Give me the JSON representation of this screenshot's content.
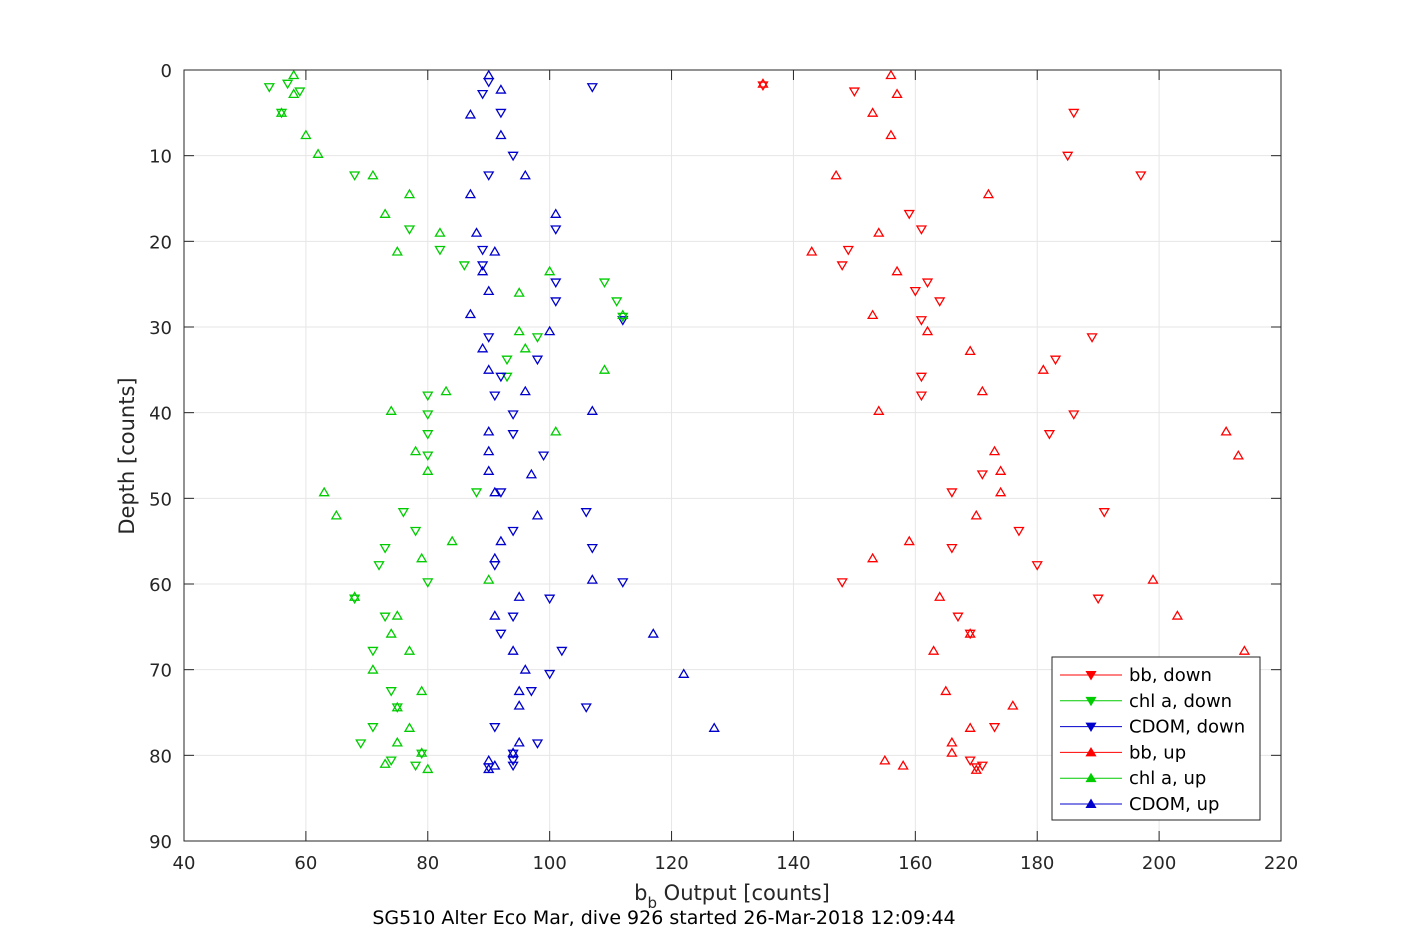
{
  "chart_data": {
    "type": "scatter",
    "title": "SG510 Alter Eco Mar, dive 926 started 26-Mar-2018 12:09:44",
    "xlabel_main": "b",
    "xlabel_sub": "b",
    "xlabel_rest": " Output [counts]",
    "ylabel": "Depth [counts]",
    "xlim": [
      40,
      220
    ],
    "ylim": [
      0,
      90
    ],
    "y_reversed": true,
    "grid": true,
    "legend_position": "bottom-right",
    "xticks": [
      "40",
      "60",
      "80",
      "100",
      "120",
      "140",
      "160",
      "180",
      "200",
      "220"
    ],
    "yticks": [
      "0",
      "10",
      "20",
      "30",
      "40",
      "50",
      "60",
      "70",
      "80",
      "90"
    ],
    "series": [
      {
        "name": "bb, down",
        "color": "#ff0000",
        "marker": "triangle-down",
        "points": [
          [
            135,
            1.8
          ],
          [
            150,
            2.5
          ],
          [
            186,
            5
          ],
          [
            185,
            10
          ],
          [
            197,
            12.3
          ],
          [
            159,
            16.8
          ],
          [
            161,
            18.6
          ],
          [
            149,
            21
          ],
          [
            148,
            22.8
          ],
          [
            162,
            24.8
          ],
          [
            160,
            25.8
          ],
          [
            164,
            27
          ],
          [
            161,
            29.2
          ],
          [
            189,
            31.2
          ],
          [
            183,
            33.8
          ],
          [
            161,
            35.8
          ],
          [
            161,
            38
          ],
          [
            186,
            40.2
          ],
          [
            182,
            42.5
          ],
          [
            171,
            47.2
          ],
          [
            166,
            49.3
          ],
          [
            191,
            51.6
          ],
          [
            177,
            53.8
          ],
          [
            166,
            55.8
          ],
          [
            180,
            57.8
          ],
          [
            148,
            59.8
          ],
          [
            190,
            61.7
          ],
          [
            167,
            63.8
          ],
          [
            169,
            65.8
          ],
          [
            173,
            76.7
          ],
          [
            169,
            80.6
          ],
          [
            171,
            81.2
          ],
          [
            170,
            81.4
          ]
        ]
      },
      {
        "name": "chl a, down",
        "color": "#00cc00",
        "marker": "triangle-down",
        "points": [
          [
            54,
            2
          ],
          [
            57,
            1.6
          ],
          [
            59,
            2.5
          ],
          [
            56,
            5
          ],
          [
            68,
            12.3
          ],
          [
            77,
            18.6
          ],
          [
            82,
            21
          ],
          [
            86,
            22.8
          ],
          [
            109,
            24.8
          ],
          [
            111,
            27
          ],
          [
            112,
            28.8
          ],
          [
            98,
            31.2
          ],
          [
            93,
            33.8
          ],
          [
            93,
            35.8
          ],
          [
            80,
            38
          ],
          [
            80,
            40.2
          ],
          [
            80,
            42.5
          ],
          [
            80,
            45
          ],
          [
            88,
            49.3
          ],
          [
            76,
            51.6
          ],
          [
            78,
            53.8
          ],
          [
            73,
            55.8
          ],
          [
            72,
            57.8
          ],
          [
            80,
            59.8
          ],
          [
            68,
            61.7
          ],
          [
            73,
            63.8
          ],
          [
            71,
            67.8
          ],
          [
            74,
            72.5
          ],
          [
            75,
            74.4
          ],
          [
            71,
            76.7
          ],
          [
            69,
            78.6
          ],
          [
            79,
            79.8
          ],
          [
            74,
            80.6
          ],
          [
            78,
            81.2
          ]
        ]
      },
      {
        "name": "CDOM, down",
        "color": "#0000cc",
        "marker": "triangle-down",
        "points": [
          [
            90,
            1.4
          ],
          [
            107,
            2
          ],
          [
            89,
            2.8
          ],
          [
            92,
            5
          ],
          [
            94,
            10
          ],
          [
            90,
            12.3
          ],
          [
            101,
            18.6
          ],
          [
            89,
            21
          ],
          [
            89,
            22.8
          ],
          [
            101,
            24.8
          ],
          [
            101,
            27
          ],
          [
            112,
            29.2
          ],
          [
            90,
            31.2
          ],
          [
            98,
            33.8
          ],
          [
            92,
            35.8
          ],
          [
            91,
            38
          ],
          [
            94,
            40.2
          ],
          [
            94,
            42.5
          ],
          [
            99,
            45
          ],
          [
            92,
            49.3
          ],
          [
            106,
            51.6
          ],
          [
            94,
            53.8
          ],
          [
            107,
            55.8
          ],
          [
            91,
            57.8
          ],
          [
            112,
            59.8
          ],
          [
            100,
            61.7
          ],
          [
            94,
            63.8
          ],
          [
            92,
            65.8
          ],
          [
            102,
            67.8
          ],
          [
            100,
            70.5
          ],
          [
            97,
            72.5
          ],
          [
            106,
            74.4
          ],
          [
            91,
            76.7
          ],
          [
            98,
            78.6
          ],
          [
            94,
            79.8
          ],
          [
            94,
            80.6
          ],
          [
            94,
            81.2
          ],
          [
            90,
            81.4
          ]
        ]
      },
      {
        "name": "bb, up",
        "color": "#ff0000",
        "marker": "triangle-up",
        "points": [
          [
            156,
            0.6
          ],
          [
            135,
            1.6
          ],
          [
            157,
            2.8
          ],
          [
            153,
            5
          ],
          [
            156,
            7.6
          ],
          [
            147,
            12.3
          ],
          [
            172,
            14.5
          ],
          [
            154,
            19
          ],
          [
            143,
            21.2
          ],
          [
            157,
            23.5
          ],
          [
            153,
            28.6
          ],
          [
            162,
            30.5
          ],
          [
            169,
            32.8
          ],
          [
            181,
            35
          ],
          [
            171,
            37.5
          ],
          [
            154,
            39.8
          ],
          [
            211,
            42.2
          ],
          [
            173,
            44.5
          ],
          [
            213,
            45
          ],
          [
            174,
            46.8
          ],
          [
            174,
            49.3
          ],
          [
            170,
            52
          ],
          [
            159,
            55
          ],
          [
            153,
            57
          ],
          [
            199,
            59.5
          ],
          [
            164,
            61.5
          ],
          [
            203,
            63.7
          ],
          [
            169,
            65.8
          ],
          [
            214,
            67.8
          ],
          [
            163,
            67.8
          ],
          [
            165,
            72.5
          ],
          [
            176,
            74.2
          ],
          [
            169,
            76.8
          ],
          [
            166,
            78.5
          ],
          [
            166,
            79.7
          ],
          [
            155,
            80.6
          ],
          [
            158,
            81.2
          ],
          [
            170,
            81.7
          ]
        ]
      },
      {
        "name": "chl a, up",
        "color": "#00cc00",
        "marker": "triangle-up",
        "points": [
          [
            58,
            0.6
          ],
          [
            58,
            2.8
          ],
          [
            56,
            5
          ],
          [
            60,
            7.6
          ],
          [
            62,
            9.8
          ],
          [
            71,
            12.3
          ],
          [
            77,
            14.5
          ],
          [
            73,
            16.8
          ],
          [
            82,
            19
          ],
          [
            75,
            21.2
          ],
          [
            100,
            23.5
          ],
          [
            95,
            26
          ],
          [
            112,
            28.6
          ],
          [
            95,
            30.5
          ],
          [
            96,
            32.5
          ],
          [
            109,
            35
          ],
          [
            83,
            37.5
          ],
          [
            74,
            39.8
          ],
          [
            101,
            42.2
          ],
          [
            78,
            44.5
          ],
          [
            80,
            46.8
          ],
          [
            63,
            49.3
          ],
          [
            65,
            52
          ],
          [
            84,
            55
          ],
          [
            79,
            57
          ],
          [
            90,
            59.5
          ],
          [
            68,
            61.5
          ],
          [
            75,
            63.7
          ],
          [
            74,
            65.8
          ],
          [
            77,
            67.8
          ],
          [
            71,
            70
          ],
          [
            79,
            72.5
          ],
          [
            75,
            74.4
          ],
          [
            77,
            76.8
          ],
          [
            75,
            78.5
          ],
          [
            79,
            79.7
          ],
          [
            73,
            81
          ],
          [
            80,
            81.6
          ]
        ]
      },
      {
        "name": "CDOM, up",
        "color": "#0000cc",
        "marker": "triangle-up",
        "points": [
          [
            90,
            0.6
          ],
          [
            92,
            2.3
          ],
          [
            87,
            5.2
          ],
          [
            92,
            7.6
          ],
          [
            96,
            12.3
          ],
          [
            87,
            14.5
          ],
          [
            101,
            16.8
          ],
          [
            88,
            19
          ],
          [
            91,
            21.2
          ],
          [
            89,
            23.5
          ],
          [
            90,
            25.8
          ],
          [
            87,
            28.5
          ],
          [
            100,
            30.5
          ],
          [
            89,
            32.5
          ],
          [
            90,
            35
          ],
          [
            96,
            37.5
          ],
          [
            107,
            39.8
          ],
          [
            90,
            42.2
          ],
          [
            90,
            44.5
          ],
          [
            90,
            46.8
          ],
          [
            97,
            47.2
          ],
          [
            91,
            49.3
          ],
          [
            98,
            52
          ],
          [
            92,
            55
          ],
          [
            91,
            57
          ],
          [
            107,
            59.5
          ],
          [
            95,
            61.5
          ],
          [
            91,
            63.7
          ],
          [
            117,
            65.8
          ],
          [
            94,
            67.8
          ],
          [
            96,
            70
          ],
          [
            122,
            70.5
          ],
          [
            95,
            72.5
          ],
          [
            95,
            74.2
          ],
          [
            127,
            76.8
          ],
          [
            95,
            78.5
          ],
          [
            94,
            79.7
          ],
          [
            90,
            80.6
          ],
          [
            91,
            81.2
          ],
          [
            90,
            81.6
          ]
        ]
      }
    ]
  }
}
